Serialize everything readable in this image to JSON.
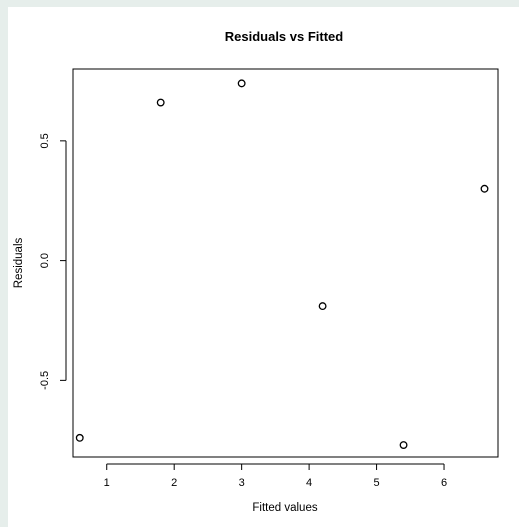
{
  "chart_data": {
    "type": "scatter",
    "title": "Residuals vs Fitted",
    "xlabel": "Fitted values",
    "ylabel": "Residuals",
    "xlim": [
      0.5,
      6.8
    ],
    "ylim": [
      -0.82,
      0.8
    ],
    "x_ticks": [
      1,
      2,
      3,
      4,
      5,
      6
    ],
    "y_ticks": [
      -0.5,
      0.0,
      0.5
    ],
    "x_tick_labels": [
      "1",
      "2",
      "3",
      "4",
      "5",
      "6"
    ],
    "y_tick_labels": [
      "-0.5",
      "0.0",
      "0.5"
    ],
    "points": [
      {
        "x": 0.6,
        "y": -0.74
      },
      {
        "x": 1.8,
        "y": 0.66
      },
      {
        "x": 3.0,
        "y": 0.74
      },
      {
        "x": 4.2,
        "y": -0.19
      },
      {
        "x": 5.4,
        "y": -0.77
      },
      {
        "x": 6.6,
        "y": 0.3
      }
    ],
    "marker": "open-circle",
    "grid": false,
    "colors": {
      "ink": "#000000",
      "panel": "#ffffff",
      "background": "#e6eeeb"
    }
  }
}
